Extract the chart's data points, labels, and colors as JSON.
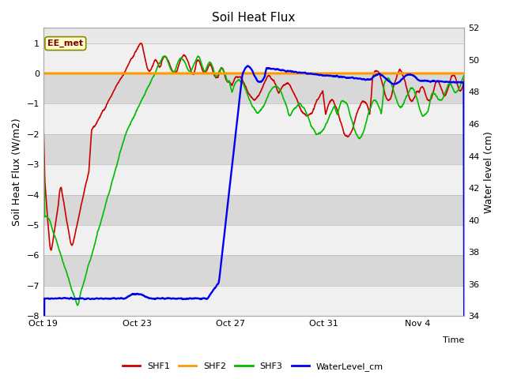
{
  "title": "Soil Heat Flux",
  "xlabel": "Time",
  "ylabel_left": "Soil Heat Flux (W/m2)",
  "ylabel_right": "Water level (cm)",
  "ylim_left": [
    -8.0,
    1.5
  ],
  "ylim_right": [
    34,
    52
  ],
  "yticks_left": [
    -8.0,
    -7.0,
    -6.0,
    -5.0,
    -4.0,
    -3.0,
    -2.0,
    -1.0,
    0.0,
    1.0
  ],
  "yticks_right": [
    34,
    36,
    38,
    40,
    42,
    44,
    46,
    48,
    50,
    52
  ],
  "xtick_positions": [
    0,
    4,
    8,
    12,
    16
  ],
  "xtick_labels": [
    "Oct 19",
    "Oct 23",
    "Oct 27",
    "Oct 31",
    "Nov 4"
  ],
  "legend_labels": [
    "SHF1",
    "SHF2",
    "SHF3",
    "WaterLevel_cm"
  ],
  "legend_colors": [
    "#cc0000",
    "#ff9900",
    "#00bb00",
    "#0000ee"
  ],
  "annotation_box": "EE_met",
  "colors": {
    "SHF1": "#cc0000",
    "SHF2": "#ff9900",
    "SHF3": "#00bb00",
    "WaterLevel": "#0000ee",
    "plot_bg": "#e8e8e8",
    "band_light": "#f0f0f0",
    "band_dark": "#d8d8d8",
    "fig_bg": "#ffffff"
  },
  "linewidth": 1.2,
  "total_days": 18,
  "figsize": [
    6.4,
    4.8
  ],
  "dpi": 100
}
